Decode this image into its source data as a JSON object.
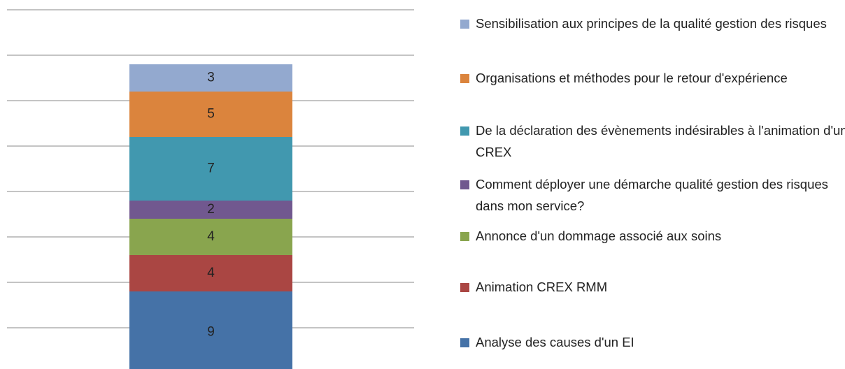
{
  "chart_data": {
    "type": "stacked_bar",
    "categories": [
      null
    ],
    "series": [
      {
        "name": "Analyse des causes d'un EI",
        "color": "#4572a7",
        "values": [
          9
        ]
      },
      {
        "name": "Animation CREX RMM",
        "color": "#aa4643",
        "values": [
          4
        ]
      },
      {
        "name": "Annonce d'un dommage associé aux soins",
        "color": "#89a54e",
        "values": [
          4
        ]
      },
      {
        "name": "Comment déployer une démarche qualité gestion des risques dans mon service?",
        "color": "#71588f",
        "values": [
          2
        ]
      },
      {
        "name": "De la déclaration des évènements indésirables à l'animation d'un CREX",
        "color": "#4198af",
        "values": [
          7
        ]
      },
      {
        "name": "Organisations et méthodes pour le retour d'expérience",
        "color": "#db843d",
        "values": [
          5
        ]
      },
      {
        "name": "Sensibilisation aux principes de la qualité gestion des risques",
        "color": "#93a9cf",
        "values": [
          3
        ]
      }
    ],
    "ylim": [
      0,
      40
    ],
    "yticks": [
      5,
      10,
      15,
      20,
      25,
      30,
      35,
      40
    ],
    "grid": true,
    "legend": "right"
  }
}
